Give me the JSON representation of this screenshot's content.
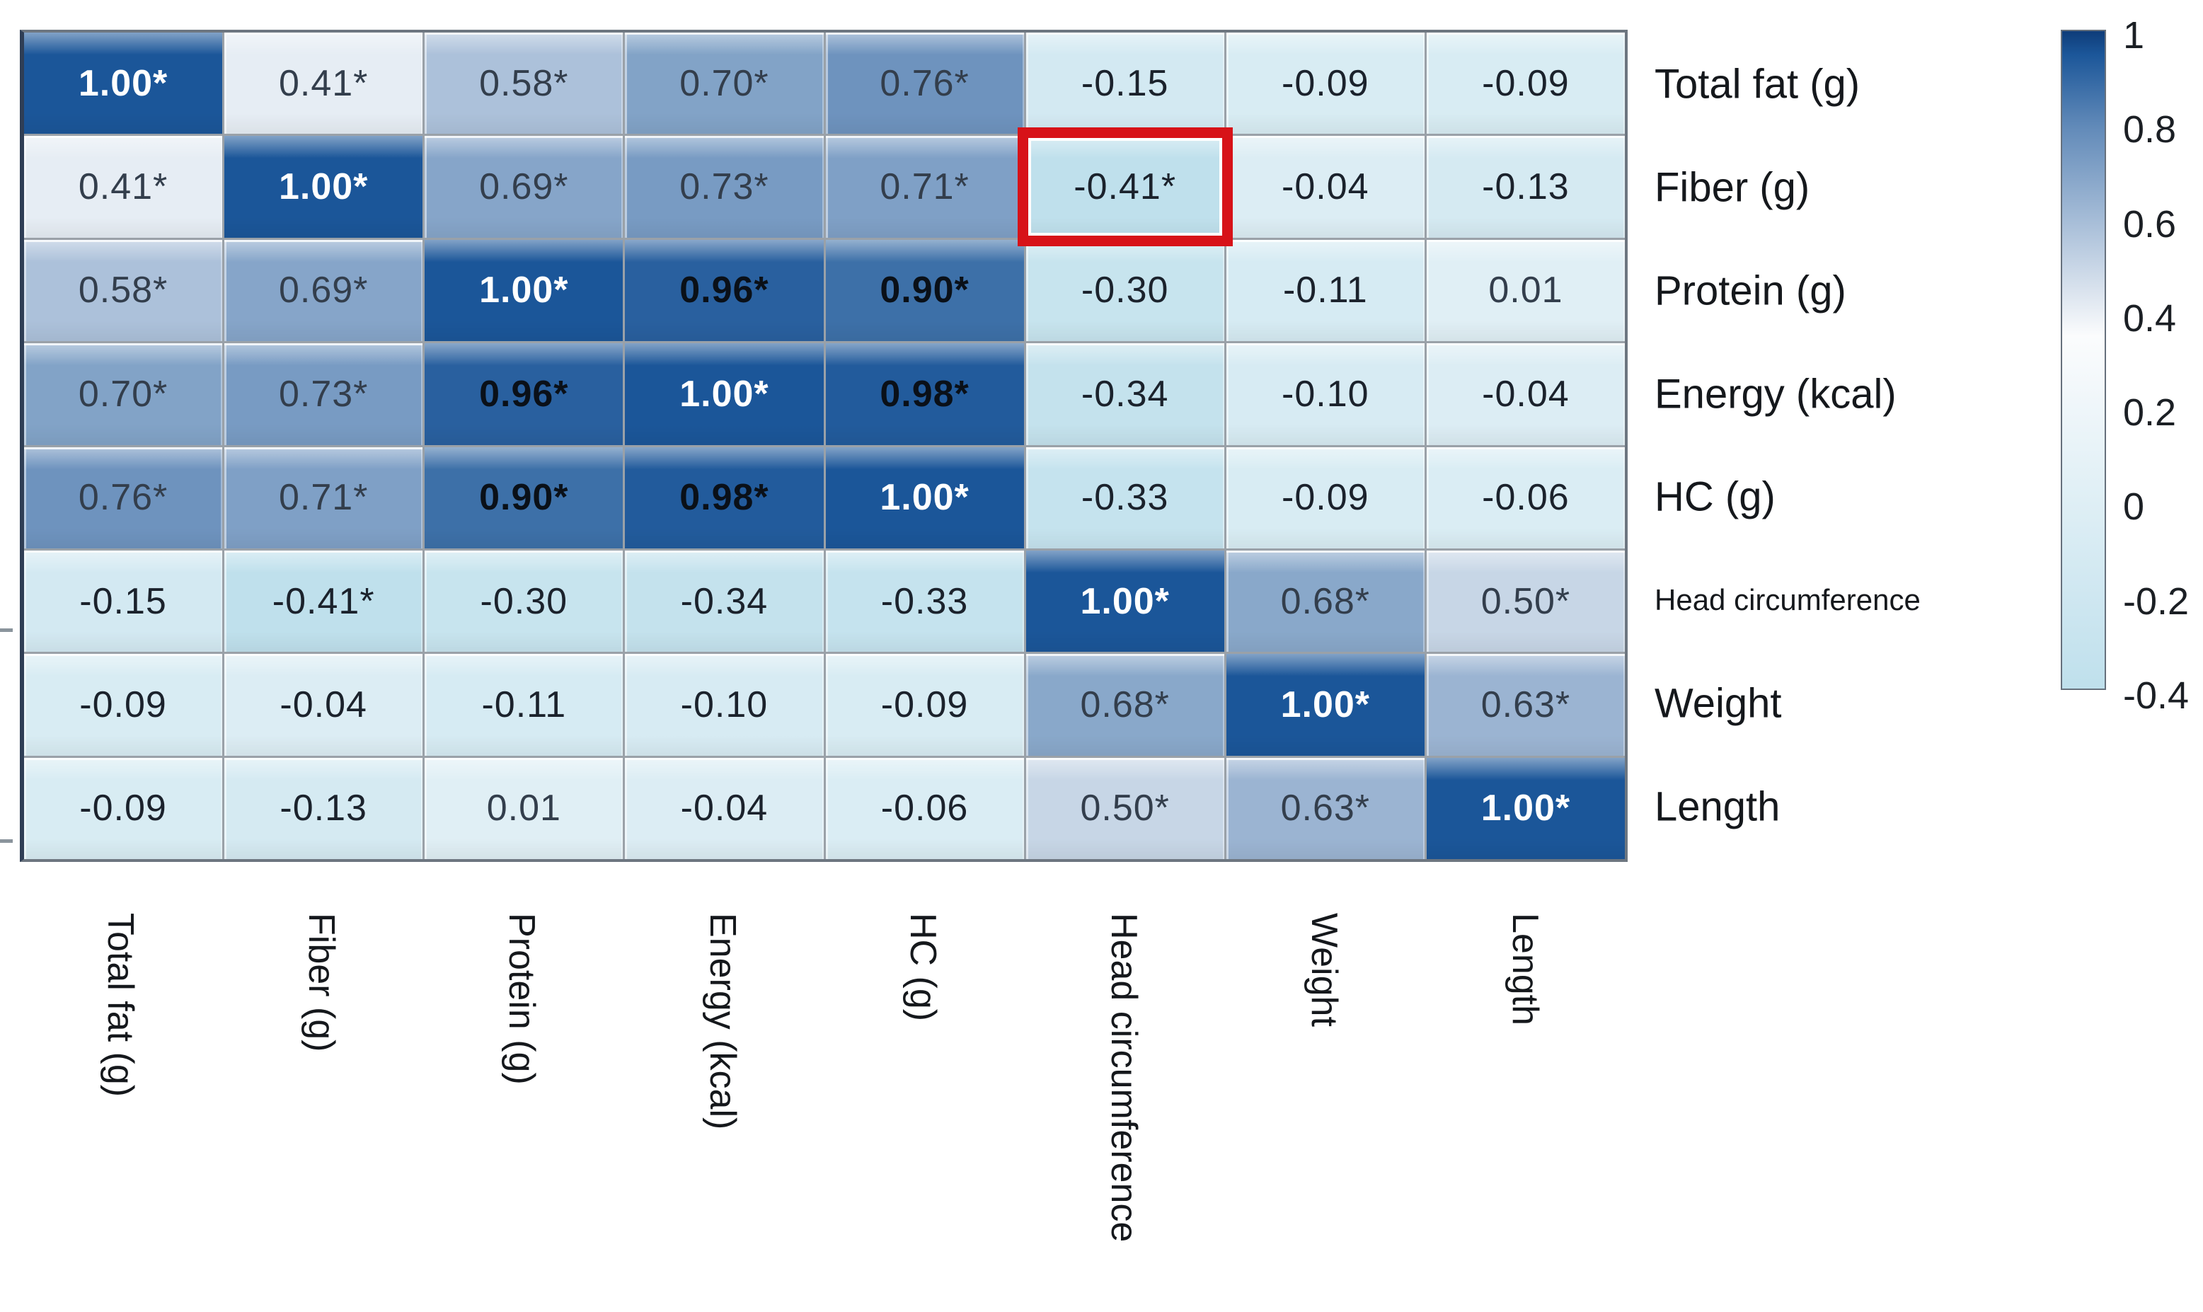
{
  "chart_data": {
    "type": "heatmap",
    "title": "",
    "variables": [
      "Total fat (g)",
      "Fiber (g)",
      "Protein (g)",
      "Energy (kcal)",
      "HC (g)",
      "Head circumference",
      "Weight",
      "Length"
    ],
    "row_labels": [
      "Total fat (g)",
      "Fiber (g)",
      "Protein (g)",
      "Energy (kcal)",
      "HC (g)",
      "Head circumference",
      "Weight",
      "Length"
    ],
    "col_labels": [
      "Total fat (g)",
      "Fiber (g)",
      "Protein (g)",
      "Energy (kcal)",
      "HC (g)",
      "Head circumference",
      "Weight",
      "Length"
    ],
    "matrix_display": [
      [
        "1.00*",
        "0.41*",
        "0.58*",
        "0.70*",
        "0.76*",
        "-0.15",
        "-0.09",
        "-0.09"
      ],
      [
        "0.41*",
        "1.00*",
        "0.69*",
        "0.73*",
        "0.71*",
        "-0.41*",
        "-0.04",
        "-0.13"
      ],
      [
        "0.58*",
        "0.69*",
        "1.00*",
        "0.96*",
        "0.90*",
        "-0.30",
        "-0.11",
        "0.01"
      ],
      [
        "0.70*",
        "0.73*",
        "0.96*",
        "1.00*",
        "0.98*",
        "-0.34",
        "-0.10",
        "-0.04"
      ],
      [
        "0.76*",
        "0.71*",
        "0.90*",
        "0.98*",
        "1.00*",
        "-0.33",
        "-0.09",
        "-0.06"
      ],
      [
        "-0.15",
        "-0.41*",
        "-0.30",
        "-0.34",
        "-0.33",
        "1.00*",
        "0.68*",
        "0.50*"
      ],
      [
        "-0.09",
        "-0.04",
        "-0.11",
        "-0.10",
        "-0.09",
        "0.68*",
        "1.00*",
        "0.63*"
      ],
      [
        "-0.09",
        "-0.13",
        "0.01",
        "-0.04",
        "-0.06",
        "0.50*",
        "0.63*",
        "1.00*"
      ]
    ],
    "matrix_values": [
      [
        1.0,
        0.41,
        0.58,
        0.7,
        0.76,
        -0.15,
        -0.09,
        -0.09
      ],
      [
        0.41,
        1.0,
        0.69,
        0.73,
        0.71,
        -0.41,
        -0.04,
        -0.13
      ],
      [
        0.58,
        0.69,
        1.0,
        0.96,
        0.9,
        -0.3,
        -0.11,
        0.01
      ],
      [
        0.7,
        0.73,
        0.96,
        1.0,
        0.98,
        -0.34,
        -0.1,
        -0.04
      ],
      [
        0.76,
        0.71,
        0.9,
        0.98,
        1.0,
        -0.33,
        -0.09,
        -0.06
      ],
      [
        -0.15,
        -0.41,
        -0.3,
        -0.34,
        -0.33,
        1.0,
        0.68,
        0.5
      ],
      [
        -0.09,
        -0.04,
        -0.11,
        -0.1,
        -0.09,
        0.68,
        1.0,
        0.63
      ],
      [
        -0.09,
        -0.13,
        0.01,
        -0.04,
        -0.06,
        0.5,
        0.63,
        1.0
      ]
    ],
    "highlighted_cell": {
      "row": "Fiber (g)",
      "column": "Head circumference",
      "row_index": 1,
      "col_index": 5,
      "value": "-0.41*"
    },
    "colorbar": {
      "position": "right",
      "min": -0.4,
      "max": 1,
      "ticks": [
        "1",
        "0.8",
        "0.6",
        "0.4",
        "0.2",
        "0",
        "-0.2",
        "-0.4"
      ]
    },
    "colors": {
      "high": "#1b5699",
      "high_cap": "#0e3c79",
      "mid": "#fbfcfd",
      "low": "#bfe0ec",
      "highlight_box": "#d71218",
      "text_on_dark": "#ffffff",
      "text_dark_cells": "#0a1018",
      "text_positive": "#333e4c",
      "text_negative": "#1b222c",
      "grid_line": "#9aa1a8",
      "frame": "#6d7680"
    },
    "grid": true,
    "legend_position": "right"
  }
}
